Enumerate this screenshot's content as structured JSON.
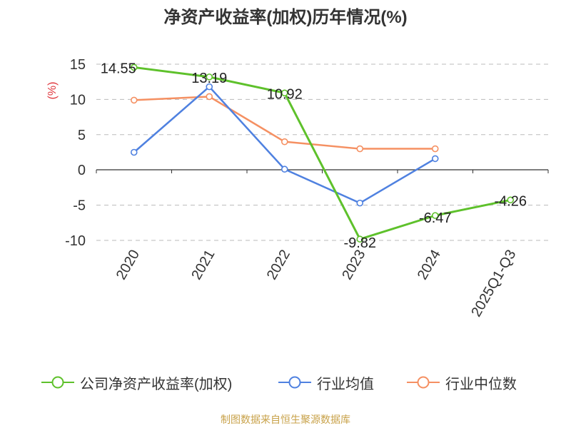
{
  "title": "净资产收益率(加权)历年情况(%)",
  "source": "制图数据来自恒生聚源数据库",
  "colors": {
    "company": "#5ec12b",
    "industry_avg": "#4f81e0",
    "industry_median": "#f59062",
    "unit": "#e0383e",
    "axis": "#333333",
    "grid": "#bbbbbb"
  },
  "chart_data": {
    "type": "line",
    "title": "净资产收益率(加权)历年情况(%)",
    "ylabel": "(%)",
    "xlabel": "",
    "ylim": [
      -10,
      15
    ],
    "yticks": [
      15,
      10,
      5,
      0,
      -5,
      -10
    ],
    "ytick_labels": [
      "15",
      "10",
      "5",
      "0",
      "-5",
      "-10"
    ],
    "categories": [
      "2020",
      "2021",
      "2022",
      "2023",
      "2024",
      "2025Q1-Q3"
    ],
    "grid": true,
    "legend_position": "bottom",
    "series": [
      {
        "name": "公司净资产收益率(加权)",
        "key": "company",
        "values": [
          14.55,
          13.19,
          10.92,
          -9.82,
          -6.47,
          -4.26
        ],
        "labels": [
          "14.55",
          "13.19",
          "10.92",
          "-9.82",
          "-6.47",
          "-4.26"
        ]
      },
      {
        "name": "行业均值",
        "key": "industry_avg",
        "values": [
          2.5,
          11.8,
          0.1,
          -4.7,
          1.6,
          null
        ]
      },
      {
        "name": "行业中位数",
        "key": "industry_median",
        "values": [
          9.9,
          10.4,
          4.0,
          3.0,
          3.0,
          null
        ]
      }
    ]
  }
}
